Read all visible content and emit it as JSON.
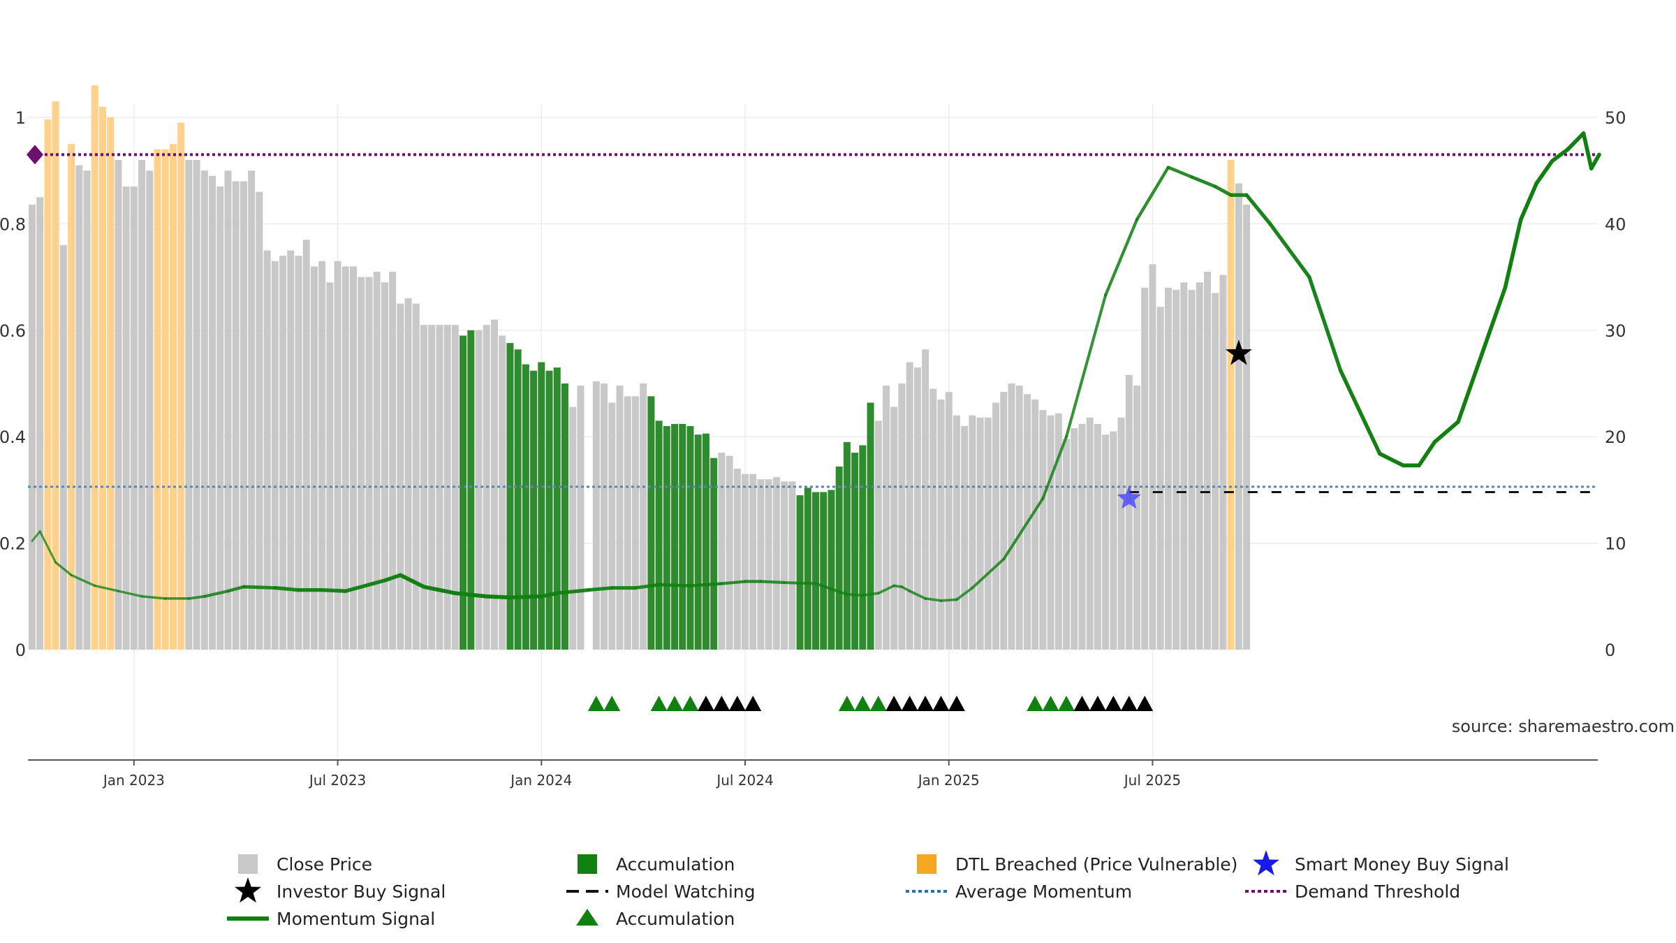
{
  "chart_data": {
    "type": "bar",
    "source_text": "source: sharemaestro.com",
    "x_ticks": [
      "Jan 2023",
      "Jul 2023",
      "Jan 2024",
      "Jul 2024",
      "Jan 2025",
      "Jul 2025"
    ],
    "x_tick_positions_weeks": [
      13,
      39,
      65,
      91,
      117,
      143
    ],
    "y_left": {
      "range": [
        0,
        1
      ],
      "ticks": [
        "0",
        "0.2",
        "0.4",
        "0.6",
        "0.8",
        "1"
      ]
    },
    "y_right": {
      "range": [
        0,
        50
      ],
      "ticks": [
        "0",
        "10",
        "20",
        "30",
        "40",
        "50"
      ]
    },
    "grid": true,
    "legend_position": "bottom",
    "colors": {
      "close": "#c8c8c8",
      "accumulation": "#2e8b2e",
      "dtl": "#ffd18a",
      "momentum": "#118011",
      "average_momentum": "#5b86ad",
      "demand_threshold": "#6d0f6d",
      "investor_star": "#000000",
      "smart_money_star": "#3232ff",
      "model_watching": "#111111"
    },
    "close_price": [
      {
        "v": "41.8",
        "c": "g"
      },
      {
        "v": "42.5",
        "c": "g"
      },
      {
        "v": "49.8",
        "c": "o"
      },
      {
        "v": "51.5",
        "c": "o"
      },
      {
        "v": "38.0",
        "c": "g"
      },
      {
        "v": "47.5",
        "c": "o"
      },
      {
        "v": "45.5",
        "c": "g"
      },
      {
        "v": "45.0",
        "c": "g"
      },
      {
        "v": "53.0",
        "c": "o"
      },
      {
        "v": "51.0",
        "c": "o"
      },
      {
        "v": "50.0",
        "c": "o"
      },
      {
        "v": "46.0",
        "c": "g"
      },
      {
        "v": "43.5",
        "c": "g"
      },
      {
        "v": "43.5",
        "c": "g"
      },
      {
        "v": "46.0",
        "c": "g"
      },
      {
        "v": "45.0",
        "c": "g"
      },
      {
        "v": "47.0",
        "c": "o"
      },
      {
        "v": "47.0",
        "c": "o"
      },
      {
        "v": "47.5",
        "c": "o"
      },
      {
        "v": "49.5",
        "c": "o"
      },
      {
        "v": "46.0",
        "c": "g"
      },
      {
        "v": "46.0",
        "c": "g"
      },
      {
        "v": "45.0",
        "c": "g"
      },
      {
        "v": "44.5",
        "c": "g"
      },
      {
        "v": "43.5",
        "c": "g"
      },
      {
        "v": "45.0",
        "c": "g"
      },
      {
        "v": "44.0",
        "c": "g"
      },
      {
        "v": "44.0",
        "c": "g"
      },
      {
        "v": "45.0",
        "c": "g"
      },
      {
        "v": "43.0",
        "c": "g"
      },
      {
        "v": "37.5",
        "c": "g"
      },
      {
        "v": "36.5",
        "c": "g"
      },
      {
        "v": "37.0",
        "c": "g"
      },
      {
        "v": "37.5",
        "c": "g"
      },
      {
        "v": "37.0",
        "c": "g"
      },
      {
        "v": "38.5",
        "c": "g"
      },
      {
        "v": "36.0",
        "c": "g"
      },
      {
        "v": "36.5",
        "c": "g"
      },
      {
        "v": "34.5",
        "c": "g"
      },
      {
        "v": "36.5",
        "c": "g"
      },
      {
        "v": "36.0",
        "c": "g"
      },
      {
        "v": "36.0",
        "c": "g"
      },
      {
        "v": "35.0",
        "c": "g"
      },
      {
        "v": "35.0",
        "c": "g"
      },
      {
        "v": "35.5",
        "c": "g"
      },
      {
        "v": "34.5",
        "c": "g"
      },
      {
        "v": "35.5",
        "c": "g"
      },
      {
        "v": "32.5",
        "c": "g"
      },
      {
        "v": "33.0",
        "c": "g"
      },
      {
        "v": "32.5",
        "c": "g"
      },
      {
        "v": "30.5",
        "c": "g"
      },
      {
        "v": "30.5",
        "c": "g"
      },
      {
        "v": "30.5",
        "c": "g"
      },
      {
        "v": "30.5",
        "c": "g"
      },
      {
        "v": "30.5",
        "c": "g"
      },
      {
        "v": "29.5",
        "c": "a"
      },
      {
        "v": "30.0",
        "c": "a"
      },
      {
        "v": "30.0",
        "c": "g"
      },
      {
        "v": "30.5",
        "c": "g"
      },
      {
        "v": "31.0",
        "c": "g"
      },
      {
        "v": "29.5",
        "c": "g"
      },
      {
        "v": "28.8",
        "c": "a"
      },
      {
        "v": "28.2",
        "c": "a"
      },
      {
        "v": "26.8",
        "c": "a"
      },
      {
        "v": "26.2",
        "c": "a"
      },
      {
        "v": "27.0",
        "c": "a"
      },
      {
        "v": "26.2",
        "c": "a"
      },
      {
        "v": "26.5",
        "c": "a"
      },
      {
        "v": "25.0",
        "c": "a"
      },
      {
        "v": "22.8",
        "c": "g"
      },
      {
        "v": "24.8",
        "c": "g"
      },
      {
        "v": "",
        "c": "g"
      },
      {
        "v": "25.2",
        "c": "g"
      },
      {
        "v": "25.0",
        "c": "g"
      },
      {
        "v": "23.2",
        "c": "g"
      },
      {
        "v": "24.8",
        "c": "g"
      },
      {
        "v": "23.8",
        "c": "g"
      },
      {
        "v": "23.8",
        "c": "g"
      },
      {
        "v": "25.0",
        "c": "g"
      },
      {
        "v": "23.8",
        "c": "a"
      },
      {
        "v": "21.5",
        "c": "a"
      },
      {
        "v": "21.0",
        "c": "a"
      },
      {
        "v": "21.2",
        "c": "a"
      },
      {
        "v": "21.2",
        "c": "a"
      },
      {
        "v": "21.0",
        "c": "a"
      },
      {
        "v": "20.2",
        "c": "a"
      },
      {
        "v": "20.3",
        "c": "a"
      },
      {
        "v": "18.0",
        "c": "a"
      },
      {
        "v": "18.5",
        "c": "g"
      },
      {
        "v": "18.2",
        "c": "g"
      },
      {
        "v": "17.0",
        "c": "g"
      },
      {
        "v": "16.5",
        "c": "g"
      },
      {
        "v": "16.5",
        "c": "g"
      },
      {
        "v": "16.0",
        "c": "g"
      },
      {
        "v": "16.0",
        "c": "g"
      },
      {
        "v": "16.2",
        "c": "g"
      },
      {
        "v": "15.8",
        "c": "g"
      },
      {
        "v": "15.8",
        "c": "g"
      },
      {
        "v": "14.5",
        "c": "a"
      },
      {
        "v": "15.2",
        "c": "a"
      },
      {
        "v": "14.8",
        "c": "a"
      },
      {
        "v": "14.8",
        "c": "a"
      },
      {
        "v": "15.0",
        "c": "a"
      },
      {
        "v": "17.2",
        "c": "a"
      },
      {
        "v": "19.5",
        "c": "a"
      },
      {
        "v": "18.5",
        "c": "a"
      },
      {
        "v": "19.2",
        "c": "a"
      },
      {
        "v": "23.2",
        "c": "a"
      },
      {
        "v": "21.5",
        "c": "g"
      },
      {
        "v": "24.8",
        "c": "g"
      },
      {
        "v": "22.8",
        "c": "g"
      },
      {
        "v": "25.0",
        "c": "g"
      },
      {
        "v": "27.0",
        "c": "g"
      },
      {
        "v": "26.5",
        "c": "g"
      },
      {
        "v": "28.2",
        "c": "g"
      },
      {
        "v": "24.5",
        "c": "g"
      },
      {
        "v": "23.5",
        "c": "g"
      },
      {
        "v": "24.2",
        "c": "g"
      },
      {
        "v": "22.0",
        "c": "g"
      },
      {
        "v": "21.0",
        "c": "g"
      },
      {
        "v": "22.0",
        "c": "g"
      },
      {
        "v": "21.8",
        "c": "g"
      },
      {
        "v": "21.8",
        "c": "g"
      },
      {
        "v": "23.2",
        "c": "g"
      },
      {
        "v": "24.2",
        "c": "g"
      },
      {
        "v": "25.0",
        "c": "g"
      },
      {
        "v": "24.8",
        "c": "g"
      },
      {
        "v": "24.0",
        "c": "g"
      },
      {
        "v": "23.5",
        "c": "g"
      },
      {
        "v": "22.5",
        "c": "g"
      },
      {
        "v": "22.0",
        "c": "g"
      },
      {
        "v": "22.2",
        "c": "g"
      },
      {
        "v": "19.8",
        "c": "g"
      },
      {
        "v": "20.8",
        "c": "g"
      },
      {
        "v": "21.2",
        "c": "g"
      },
      {
        "v": "21.8",
        "c": "g"
      },
      {
        "v": "21.2",
        "c": "g"
      },
      {
        "v": "20.2",
        "c": "g"
      },
      {
        "v": "20.5",
        "c": "g"
      },
      {
        "v": "21.8",
        "c": "g"
      },
      {
        "v": "25.8",
        "c": "g"
      },
      {
        "v": "24.8",
        "c": "g"
      },
      {
        "v": "34.0",
        "c": "g"
      },
      {
        "v": "36.2",
        "c": "g"
      },
      {
        "v": "32.2",
        "c": "g"
      },
      {
        "v": "34.0",
        "c": "g"
      },
      {
        "v": "33.8",
        "c": "g"
      },
      {
        "v": "34.5",
        "c": "g"
      },
      {
        "v": "33.8",
        "c": "g"
      },
      {
        "v": "34.5",
        "c": "g"
      },
      {
        "v": "35.5",
        "c": "g"
      },
      {
        "v": "33.5",
        "c": "g"
      },
      {
        "v": "35.2",
        "c": "g"
      },
      {
        "v": "46.0",
        "c": "o"
      },
      {
        "v": "43.8",
        "c": "g"
      },
      {
        "v": "41.8",
        "c": "g"
      }
    ],
    "momentum": [
      [
        "10.2",
        "0"
      ],
      [
        "11.1",
        "0"
      ],
      [
        "8.2",
        "1"
      ],
      [
        "7.0",
        "1"
      ],
      [
        "6.0",
        "1"
      ],
      [
        "5.5",
        "1"
      ],
      [
        "5.0",
        "1"
      ],
      [
        "4.8",
        "2"
      ],
      [
        "4.8",
        "2"
      ],
      [
        "5.0",
        "3"
      ],
      [
        "5.5",
        "4"
      ],
      [
        "5.9",
        "5"
      ],
      [
        "5.8",
        "6"
      ],
      [
        "5.6",
        "7"
      ],
      [
        "5.6",
        "7"
      ],
      [
        "5.5",
        "7"
      ],
      [
        "6.5",
        "7"
      ],
      [
        "7.0",
        "8"
      ],
      [
        "5.9",
        "8"
      ],
      [
        "5.3",
        "8"
      ],
      [
        "5.0",
        "8"
      ],
      [
        "4.9",
        "8"
      ],
      [
        "5.0",
        "7"
      ],
      [
        "5.3",
        "7"
      ],
      [
        "5.6",
        "6"
      ],
      [
        "5.8",
        "6"
      ],
      [
        "5.8",
        "6"
      ],
      [
        "6.1",
        "5"
      ],
      [
        "6.0",
        "5"
      ],
      [
        "6.2",
        "4"
      ],
      [
        "6.4",
        "4"
      ],
      [
        "6.4",
        "4"
      ],
      [
        "6.3",
        "3"
      ],
      [
        "6.2",
        "3"
      ],
      [
        "5.7",
        "3"
      ],
      [
        "5.2",
        "2"
      ],
      [
        "5.1",
        "2"
      ],
      [
        "5.3",
        "2"
      ],
      [
        "6.0",
        "2"
      ],
      [
        "5.9",
        "2"
      ],
      [
        "5.5",
        "2"
      ],
      [
        "4.8",
        "2"
      ],
      [
        "4.6",
        "2"
      ],
      [
        "4.7",
        "2"
      ],
      [
        "5.8",
        "2"
      ],
      [
        "8.5",
        "3"
      ],
      [
        "14.2",
        "3"
      ],
      [
        "20.0",
        "3"
      ],
      [
        "33.3",
        "4"
      ],
      [
        "40.4",
        "4"
      ],
      [
        "45.3",
        "5"
      ],
      [
        "44.4",
        "5"
      ],
      [
        "43.5",
        "6"
      ],
      [
        "42.7",
        "6"
      ],
      [
        "42.7",
        "7"
      ],
      [
        "40.0",
        "7"
      ],
      [
        "35.0",
        "7"
      ],
      [
        "26.2",
        "7"
      ],
      [
        "18.4",
        "8"
      ],
      [
        "17.3",
        "8"
      ],
      [
        "17.3",
        "8"
      ],
      [
        "19.5",
        "8"
      ],
      [
        "21.4",
        "8"
      ],
      [
        "34.0",
        "8"
      ],
      [
        "40.4",
        "8"
      ],
      [
        "43.8",
        "8"
      ],
      [
        "45.9",
        "8"
      ],
      [
        "47.0",
        "8"
      ],
      [
        "48.5",
        "8"
      ],
      [
        "45.2",
        "8"
      ],
      [
        "46.5",
        "8"
      ]
    ],
    "momentum_points_weeks": [
      0,
      1,
      3,
      5,
      8,
      11,
      14,
      17,
      20,
      22,
      25,
      27,
      31,
      34,
      37,
      40,
      45,
      47,
      50,
      54,
      58,
      61,
      65,
      67,
      71,
      74,
      77,
      80,
      84,
      88,
      91,
      93,
      96,
      100,
      102,
      104,
      106,
      108,
      110,
      111,
      112,
      114,
      116,
      118,
      120,
      124,
      129,
      132,
      137,
      141,
      145,
      148,
      151,
      153,
      155,
      158,
      163,
      167,
      172,
      175,
      177,
      179,
      182,
      188,
      190,
      192,
      194,
      196,
      198,
      199,
      200
    ],
    "average_momentum": 15.3,
    "demand_threshold": 46.5,
    "model_watching_level": 14.8,
    "investor_buy_signal": {
      "week": 154,
      "value": 27.8
    },
    "smart_money_buy_signal": {
      "week": 140,
      "value": 14.2
    },
    "accumulation_triangles": [
      {
        "week": 72,
        "c": "green"
      },
      {
        "week": 74,
        "c": "green"
      },
      {
        "week": 80,
        "c": "green"
      },
      {
        "week": 82,
        "c": "green"
      },
      {
        "week": 84,
        "c": "green"
      },
      {
        "week": 86,
        "c": "black"
      },
      {
        "week": 88,
        "c": "black"
      },
      {
        "week": 90,
        "c": "black"
      },
      {
        "week": 92,
        "c": "black"
      },
      {
        "week": 104,
        "c": "green"
      },
      {
        "week": 106,
        "c": "green"
      },
      {
        "week": 108,
        "c": "green"
      },
      {
        "week": 110,
        "c": "black"
      },
      {
        "week": 112,
        "c": "black"
      },
      {
        "week": 114,
        "c": "black"
      },
      {
        "week": 116,
        "c": "black"
      },
      {
        "week": 118,
        "c": "black"
      },
      {
        "week": 128,
        "c": "green"
      },
      {
        "week": 130,
        "c": "green"
      },
      {
        "week": 132,
        "c": "green"
      },
      {
        "week": 134,
        "c": "black"
      },
      {
        "week": 136,
        "c": "black"
      },
      {
        "week": 138,
        "c": "black"
      },
      {
        "week": 140,
        "c": "black"
      },
      {
        "week": 142,
        "c": "black"
      }
    ],
    "legend": [
      {
        "label": "Close Price",
        "marker": "square",
        "color": "#c8c8c8"
      },
      {
        "label": "Accumulation",
        "marker": "square",
        "color": "#118011"
      },
      {
        "label": "DTL Breached (Price Vulnerable)",
        "marker": "square",
        "color": "#f5a623"
      },
      {
        "label": "Smart Money Buy Signal",
        "marker": "star",
        "color": "#1a1ae6"
      },
      {
        "label": "Investor Buy Signal",
        "marker": "star",
        "color": "#000000"
      },
      {
        "label": "Model Watching",
        "marker": "dash",
        "color": "#111111"
      },
      {
        "label": "Average Momentum",
        "marker": "dot",
        "color": "#2f6f9f"
      },
      {
        "label": "Demand Threshold",
        "marker": "dot",
        "color": "#6d0f6d"
      },
      {
        "label": "Momentum Signal",
        "marker": "line",
        "color": "#118011"
      },
      {
        "label": "Accumulation",
        "marker": "triangle",
        "color": "#118011"
      }
    ]
  }
}
